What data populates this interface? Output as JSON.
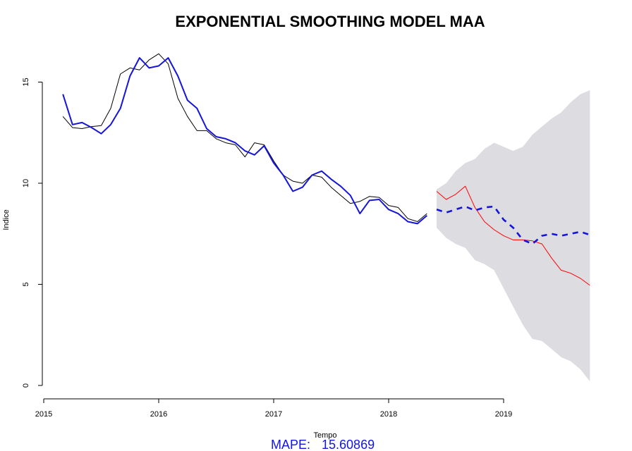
{
  "chart_data": {
    "type": "line",
    "title": "EXPONENTIAL SMOOTHING MODEL MAA",
    "xlabel": "Tempo",
    "ylabel": "Indice",
    "x_ticks": [
      2015,
      2016,
      2017,
      2018,
      2019
    ],
    "y_ticks": [
      0,
      5,
      10,
      15
    ],
    "xlim": [
      2015,
      2019.75
    ],
    "ylim": [
      0,
      17
    ],
    "grid": false,
    "annotation": {
      "label": "MAPE:",
      "value": "15.60869"
    },
    "colors": {
      "actual": "#000000",
      "fitted": "#1414dc",
      "test_actual": "#ff0000",
      "forecast": "#1414dc",
      "interval": "#dcdce1"
    },
    "series": [
      {
        "role": "actual",
        "x": [
          2015.167,
          2015.25,
          2015.333,
          2015.417,
          2015.5,
          2015.583,
          2015.667,
          2015.75,
          2015.833,
          2015.917,
          2016.0,
          2016.083,
          2016.167,
          2016.25,
          2016.333,
          2016.417,
          2016.5,
          2016.583,
          2016.667,
          2016.75,
          2016.833,
          2016.917,
          2017.0,
          2017.083,
          2017.167,
          2017.25,
          2017.333,
          2017.417,
          2017.5,
          2017.583,
          2017.667,
          2017.75,
          2017.833,
          2017.917,
          2018.0,
          2018.083,
          2018.167,
          2018.25,
          2018.333
        ],
        "values": [
          13.3,
          12.75,
          12.7,
          12.8,
          12.85,
          13.7,
          15.4,
          15.7,
          15.6,
          16.1,
          16.4,
          15.9,
          14.2,
          13.3,
          12.6,
          12.6,
          12.2,
          12.0,
          11.9,
          11.3,
          12.0,
          11.9,
          11.1,
          10.4,
          10.1,
          10.0,
          10.4,
          10.3,
          9.8,
          9.4,
          9.0,
          9.1,
          9.35,
          9.3,
          8.9,
          8.8,
          8.25,
          8.1,
          8.5
        ]
      },
      {
        "role": "fitted",
        "x": [
          2015.167,
          2015.25,
          2015.333,
          2015.417,
          2015.5,
          2015.583,
          2015.667,
          2015.75,
          2015.833,
          2015.917,
          2016.0,
          2016.083,
          2016.167,
          2016.25,
          2016.333,
          2016.417,
          2016.5,
          2016.583,
          2016.667,
          2016.75,
          2016.833,
          2016.917,
          2017.0,
          2017.083,
          2017.167,
          2017.25,
          2017.333,
          2017.417,
          2017.5,
          2017.583,
          2017.667,
          2017.75,
          2017.833,
          2017.917,
          2018.0,
          2018.083,
          2018.167,
          2018.25,
          2018.333
        ],
        "values": [
          14.4,
          12.9,
          13.0,
          12.75,
          12.45,
          12.9,
          13.7,
          15.3,
          16.2,
          15.7,
          15.8,
          16.2,
          15.3,
          14.1,
          13.7,
          12.7,
          12.3,
          12.2,
          12.0,
          11.6,
          11.4,
          11.85,
          11.0,
          10.4,
          9.6,
          9.8,
          10.4,
          10.6,
          10.2,
          9.85,
          9.4,
          8.5,
          9.15,
          9.2,
          8.7,
          8.5,
          8.1,
          8.0,
          8.4
        ]
      },
      {
        "role": "test_actual",
        "x": [
          2018.417,
          2018.5,
          2018.583,
          2018.667,
          2018.75,
          2018.833,
          2018.917,
          2019.0,
          2019.083,
          2019.167,
          2019.25,
          2019.333,
          2019.417,
          2019.5,
          2019.583,
          2019.667,
          2019.75
        ],
        "values": [
          9.6,
          9.2,
          9.45,
          9.85,
          8.8,
          8.1,
          7.7,
          7.4,
          7.2,
          7.2,
          7.15,
          7.0,
          6.3,
          5.7,
          5.55,
          5.3,
          4.95
        ]
      },
      {
        "role": "forecast",
        "x": [
          2018.417,
          2018.5,
          2018.583,
          2018.667,
          2018.75,
          2018.833,
          2018.917,
          2019.0,
          2019.083,
          2019.167,
          2019.25,
          2019.333,
          2019.417,
          2019.5,
          2019.583,
          2019.667,
          2019.75
        ],
        "values": [
          8.7,
          8.55,
          8.7,
          8.85,
          8.65,
          8.8,
          8.85,
          8.2,
          7.8,
          7.2,
          7.0,
          7.4,
          7.5,
          7.4,
          7.5,
          7.6,
          7.45
        ]
      }
    ],
    "interval": {
      "x": [
        2018.417,
        2018.5,
        2018.583,
        2018.667,
        2018.75,
        2018.833,
        2018.917,
        2019.0,
        2019.083,
        2019.167,
        2019.25,
        2019.333,
        2019.417,
        2019.5,
        2019.583,
        2019.667,
        2019.75
      ],
      "upper": [
        9.7,
        10.0,
        10.6,
        11.0,
        11.2,
        11.7,
        12.0,
        11.8,
        11.6,
        11.8,
        12.4,
        12.8,
        13.2,
        13.5,
        14.0,
        14.4,
        14.6
      ],
      "lower": [
        7.8,
        7.3,
        7.0,
        6.8,
        6.2,
        6.0,
        5.7,
        4.8,
        3.9,
        3.0,
        2.3,
        2.2,
        1.8,
        1.4,
        1.2,
        0.8,
        0.2
      ]
    }
  }
}
